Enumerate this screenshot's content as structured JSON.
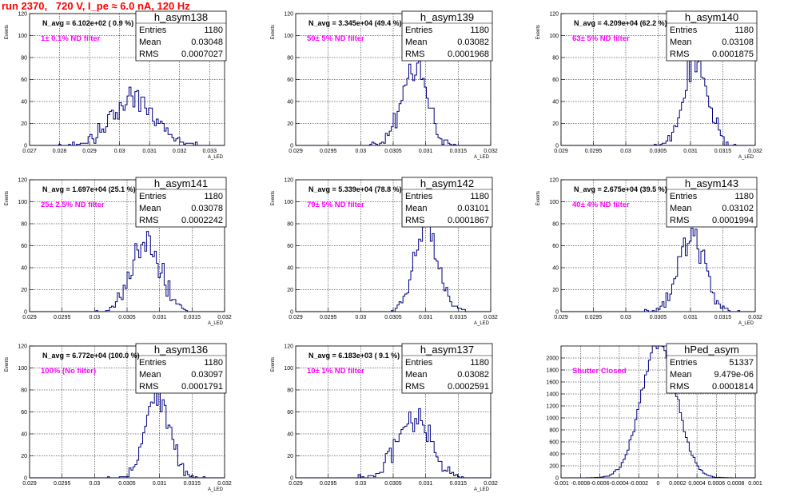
{
  "page_title": "run 2370,   720 V, I_pe ≈ 6.0 nA, 120 Hz",
  "colors": {
    "title": "#ff0000",
    "filter_label": "#ff00ff",
    "histogram": "#000080",
    "grid": "#000000"
  },
  "chart_data": [
    {
      "type": "histogram",
      "name": "h_asym138",
      "ylabel": "Events",
      "xlabel": "A_LED",
      "navg": "N_avg = 6.102e+02 ( 0.9 %)",
      "filter": "1± 0.1% ND filter",
      "stats": {
        "entries": "1180",
        "mean": "0.03048",
        "rms": "0.0007027"
      },
      "xlim": [
        0.027,
        0.0335
      ],
      "ylim": [
        0,
        120
      ],
      "xticks": [
        "0.027",
        "0.028",
        "0.029",
        "0.03",
        "0.031",
        "0.032",
        "0.033"
      ],
      "yticks": [
        "0",
        "20",
        "40",
        "60",
        "80",
        "100",
        "120"
      ],
      "mean": 0.03048,
      "rms": 0.0007027,
      "entries": 1180
    },
    {
      "type": "histogram",
      "name": "h_asym139",
      "ylabel": "Events",
      "xlabel": "A_LED",
      "navg": "N_avg = 3.345e+04 (49.4 %)",
      "filter": "50± 5% ND filter",
      "stats": {
        "entries": "1180",
        "mean": "0.03082",
        "rms": "0.0001968"
      },
      "xlim": [
        0.029,
        0.032
      ],
      "ylim": [
        0,
        120
      ],
      "xticks": [
        "0.029",
        "0.0295",
        "0.03",
        "0.0305",
        "0.031",
        "0.0315",
        "0.032"
      ],
      "yticks": [
        "0",
        "20",
        "40",
        "60",
        "80",
        "100",
        "120"
      ],
      "mean": 0.03082,
      "rms": 0.0001968,
      "entries": 1180
    },
    {
      "type": "histogram",
      "name": "h_asym140",
      "ylabel": "Events",
      "xlabel": "A_LED",
      "navg": "N_avg = 4.209e+04 (62.2 %)",
      "filter": "63± 5% ND filter",
      "stats": {
        "entries": "1180",
        "mean": "0.03108",
        "rms": "0.0001875"
      },
      "xlim": [
        0.029,
        0.032
      ],
      "ylim": [
        0,
        120
      ],
      "xticks": [
        "0.029",
        "0.0295",
        "0.03",
        "0.0305",
        "0.031",
        "0.0315",
        "0.032"
      ],
      "yticks": [
        "0",
        "20",
        "40",
        "60",
        "80",
        "100",
        "120"
      ],
      "mean": 0.03108,
      "rms": 0.0001875,
      "entries": 1180
    },
    {
      "type": "histogram",
      "name": "h_asym141",
      "ylabel": "Events",
      "xlabel": "A_LED",
      "navg": "N_avg = 1.697e+04 (25.1 %)",
      "filter": "25± 2.5% ND filter",
      "stats": {
        "entries": "1180",
        "mean": "0.03078",
        "rms": "0.0002242"
      },
      "xlim": [
        0.029,
        0.032
      ],
      "ylim": [
        0,
        120
      ],
      "xticks": [
        "0.029",
        "0.0295",
        "0.03",
        "0.0305",
        "0.031",
        "0.0315",
        "0.032"
      ],
      "yticks": [
        "0",
        "20",
        "40",
        "60",
        "80",
        "100",
        "120"
      ],
      "mean": 0.03078,
      "rms": 0.0002242,
      "entries": 1180
    },
    {
      "type": "histogram",
      "name": "h_asym142",
      "ylabel": "Events",
      "xlabel": "A_LED",
      "navg": "N_avg = 5.339e+04 (78.8 %)",
      "filter": "79± 5% ND filter",
      "stats": {
        "entries": "1180",
        "mean": "0.03101",
        "rms": "0.0001867"
      },
      "xlim": [
        0.029,
        0.032
      ],
      "ylim": [
        0,
        120
      ],
      "xticks": [
        "0.029",
        "0.0295",
        "0.03",
        "0.0305",
        "0.031",
        "0.0315",
        "0.032"
      ],
      "yticks": [
        "0",
        "20",
        "40",
        "60",
        "80",
        "100",
        "120"
      ],
      "mean": 0.03101,
      "rms": 0.0001867,
      "entries": 1180
    },
    {
      "type": "histogram",
      "name": "h_asym143",
      "ylabel": "Events",
      "xlabel": "A_LED",
      "navg": "N_avg = 2.675e+04 (39.5 %)",
      "filter": "40± 4% ND filter",
      "stats": {
        "entries": "1180",
        "mean": "0.03102",
        "rms": "0.0001994"
      },
      "xlim": [
        0.029,
        0.032
      ],
      "ylim": [
        0,
        120
      ],
      "xticks": [
        "0.029",
        "0.0295",
        "0.03",
        "0.0305",
        "0.031",
        "0.0315",
        "0.032"
      ],
      "yticks": [
        "0",
        "20",
        "40",
        "60",
        "80",
        "100",
        "120"
      ],
      "mean": 0.03102,
      "rms": 0.0001994,
      "entries": 1180
    },
    {
      "type": "histogram",
      "name": "h_asym136",
      "ylabel": "Events",
      "xlabel": "A_LED",
      "navg": "N_avg = 6.772e+04 (100.0 %)",
      "filter": "100% (No filter)",
      "stats": {
        "entries": "1180",
        "mean": "0.03097",
        "rms": "0.0001791"
      },
      "xlim": [
        0.029,
        0.032
      ],
      "ylim": [
        0,
        120
      ],
      "xticks": [
        "0.029",
        "0.0295",
        "0.03",
        "0.0305",
        "0.031",
        "0.0315",
        "0.032"
      ],
      "yticks": [
        "0",
        "20",
        "40",
        "60",
        "80",
        "100",
        "120"
      ],
      "mean": 0.03097,
      "rms": 0.0001791,
      "entries": 1180
    },
    {
      "type": "histogram",
      "name": "h_asym137",
      "ylabel": "Events",
      "xlabel": "A_LED",
      "navg": "N_avg = 6.183e+03 ( 9.1 %)",
      "filter": "10± 1% ND filter",
      "stats": {
        "entries": "1180",
        "mean": "0.03082",
        "rms": "0.0002591"
      },
      "xlim": [
        0.029,
        0.032
      ],
      "ylim": [
        0,
        120
      ],
      "xticks": [
        "0.029",
        "0.0295",
        "0.03",
        "0.0305",
        "0.031",
        "0.0315",
        "0.032"
      ],
      "yticks": [
        "0",
        "20",
        "40",
        "60",
        "80",
        "100",
        "120"
      ],
      "mean": 0.03082,
      "rms": 0.0002591,
      "entries": 1180
    },
    {
      "type": "histogram",
      "name": "hPed_asym",
      "ylabel": "",
      "xlabel": "",
      "navg": "",
      "filter": "Shutter Closed",
      "stats": {
        "entries": "51337",
        "mean": "9.479e-06",
        "rms": "0.0001814"
      },
      "xlim": [
        -0.001,
        0.001
      ],
      "ylim": [
        0,
        2200
      ],
      "xticks": [
        "-0.001",
        "-0.0008",
        "-0.0006",
        "-0.0004",
        "-0.0002",
        "0",
        "0.0002",
        "0.0004",
        "0.0006",
        "0.0008",
        "0.001"
      ],
      "yticks": [
        "0",
        "200",
        "400",
        "600",
        "800",
        "1000",
        "1200",
        "1400",
        "1600",
        "1800",
        "2000"
      ],
      "mean": 9.479e-06,
      "rms": 0.0001814,
      "entries": 51337
    }
  ]
}
